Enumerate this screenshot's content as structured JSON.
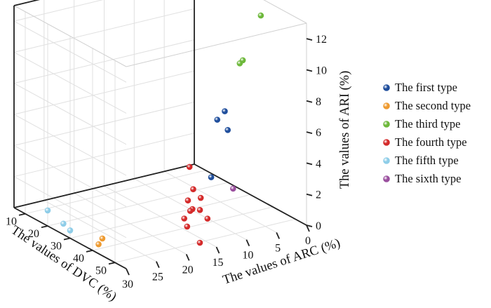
{
  "chart_data": {
    "type": "scatter3d",
    "x_axis": {
      "label": "The values of ARC (%)",
      "ticks": [
        "0",
        "5",
        "10",
        "15",
        "20",
        "25",
        "30"
      ]
    },
    "y_axis": {
      "label": "The values of DVC (%)",
      "ticks": [
        "10",
        "20",
        "30",
        "40",
        "50"
      ]
    },
    "z_axis": {
      "label": "The values of ARI (%)",
      "ticks": [
        "0",
        "2",
        "4",
        "6",
        "8",
        "10",
        "12"
      ]
    },
    "xlim": [
      0,
      30
    ],
    "ylim": [
      5,
      55
    ],
    "zlim": [
      0,
      13
    ],
    "grid": true,
    "legend_position": "right",
    "series": [
      {
        "name": "The first type",
        "color": "#1f4e9c",
        "points": [
          [
            14,
            50,
            4.0
          ],
          [
            9,
            44,
            6.1
          ],
          [
            10,
            42,
            6.7
          ],
          [
            8,
            40,
            6.9
          ]
        ]
      },
      {
        "name": "The second type",
        "color": "#ee9a30",
        "points": [
          [
            29,
            40,
            0.3
          ],
          [
            28,
            39,
            0.5
          ]
        ]
      },
      {
        "name": "The third type",
        "color": "#6db83a",
        "points": [
          [
            2,
            40,
            12.5
          ],
          [
            7,
            44,
            10.2
          ],
          [
            5,
            40,
            9.9
          ]
        ]
      },
      {
        "name": "The fourth type",
        "color": "#d42a2a",
        "points": [
          [
            17,
            53,
            0.3
          ],
          [
            14,
            42,
            2.6
          ],
          [
            12,
            35,
            3.3
          ],
          [
            12,
            40,
            1.7
          ],
          [
            18,
            50,
            1.2
          ],
          [
            14,
            45,
            1.5
          ],
          [
            16,
            45,
            2.3
          ],
          [
            16,
            47,
            1.9
          ],
          [
            13,
            38,
            0.8
          ],
          [
            14,
            38,
            0.4
          ],
          [
            12,
            43,
            0.6
          ]
        ]
      },
      {
        "name": "The fifth type",
        "color": "#8ecde8",
        "points": [
          [
            30,
            30,
            0.5
          ],
          [
            30,
            27,
            0.7
          ],
          [
            30,
            20,
            1.0
          ]
        ]
      },
      {
        "name": "The sixth type",
        "color": "#9a4f9e",
        "points": [
          [
            4,
            33,
            1.0
          ]
        ]
      }
    ]
  }
}
